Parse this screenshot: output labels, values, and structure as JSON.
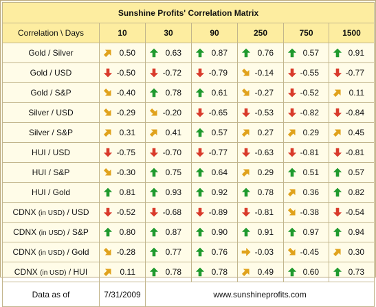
{
  "title": "Sunshine Profits' Correlation Matrix",
  "header": {
    "label": "Correlation \\ Days",
    "periods": [
      "10",
      "30",
      "90",
      "250",
      "750",
      "1500"
    ]
  },
  "rows": [
    {
      "pair": "Gold / Silver",
      "cells": [
        {
          "v": "0.50",
          "d": "up-right"
        },
        {
          "v": "0.63",
          "d": "up"
        },
        {
          "v": "0.87",
          "d": "up"
        },
        {
          "v": "0.76",
          "d": "up"
        },
        {
          "v": "0.57",
          "d": "up"
        },
        {
          "v": "0.91",
          "d": "up"
        }
      ]
    },
    {
      "pair": "Gold / USD",
      "cells": [
        {
          "v": "-0.50",
          "d": "down"
        },
        {
          "v": "-0.72",
          "d": "down"
        },
        {
          "v": "-0.79",
          "d": "down"
        },
        {
          "v": "-0.14",
          "d": "down-right"
        },
        {
          "v": "-0.55",
          "d": "down"
        },
        {
          "v": "-0.77",
          "d": "down"
        }
      ]
    },
    {
      "pair": "Gold / S&P",
      "cells": [
        {
          "v": "-0.40",
          "d": "down-right"
        },
        {
          "v": "0.78",
          "d": "up"
        },
        {
          "v": "0.61",
          "d": "up"
        },
        {
          "v": "-0.27",
          "d": "down-right"
        },
        {
          "v": "-0.52",
          "d": "down"
        },
        {
          "v": "0.11",
          "d": "up-right"
        }
      ]
    },
    {
      "pair": "Silver / USD",
      "cells": [
        {
          "v": "-0.29",
          "d": "down-right"
        },
        {
          "v": "-0.20",
          "d": "down-right"
        },
        {
          "v": "-0.65",
          "d": "down"
        },
        {
          "v": "-0.53",
          "d": "down"
        },
        {
          "v": "-0.82",
          "d": "down"
        },
        {
          "v": "-0.84",
          "d": "down"
        }
      ]
    },
    {
      "pair": "Silver / S&P",
      "cells": [
        {
          "v": "0.31",
          "d": "up-right"
        },
        {
          "v": "0.41",
          "d": "up-right"
        },
        {
          "v": "0.57",
          "d": "up"
        },
        {
          "v": "0.27",
          "d": "up-right"
        },
        {
          "v": "0.29",
          "d": "up-right"
        },
        {
          "v": "0.45",
          "d": "up-right"
        }
      ]
    },
    {
      "pair": "HUI / USD",
      "cells": [
        {
          "v": "-0.75",
          "d": "down"
        },
        {
          "v": "-0.70",
          "d": "down"
        },
        {
          "v": "-0.77",
          "d": "down"
        },
        {
          "v": "-0.63",
          "d": "down"
        },
        {
          "v": "-0.81",
          "d": "down"
        },
        {
          "v": "-0.81",
          "d": "down"
        }
      ]
    },
    {
      "pair": "HUI / S&P",
      "cells": [
        {
          "v": "-0.30",
          "d": "down-right"
        },
        {
          "v": "0.75",
          "d": "up"
        },
        {
          "v": "0.64",
          "d": "up"
        },
        {
          "v": "0.29",
          "d": "up-right"
        },
        {
          "v": "0.51",
          "d": "up"
        },
        {
          "v": "0.57",
          "d": "up"
        }
      ]
    },
    {
      "pair": "HUI / Gold",
      "cells": [
        {
          "v": "0.81",
          "d": "up"
        },
        {
          "v": "0.93",
          "d": "up"
        },
        {
          "v": "0.92",
          "d": "up"
        },
        {
          "v": "0.78",
          "d": "up"
        },
        {
          "v": "0.36",
          "d": "up-right"
        },
        {
          "v": "0.82",
          "d": "up"
        }
      ]
    },
    {
      "pair": "CDNX",
      "note": "(in USD)",
      "tail": "/ USD",
      "cells": [
        {
          "v": "-0.52",
          "d": "down"
        },
        {
          "v": "-0.68",
          "d": "down"
        },
        {
          "v": "-0.89",
          "d": "down"
        },
        {
          "v": "-0.81",
          "d": "down"
        },
        {
          "v": "-0.38",
          "d": "down-right"
        },
        {
          "v": "-0.54",
          "d": "down"
        }
      ]
    },
    {
      "pair": "CDNX",
      "note": "(in USD)",
      "tail": "/ S&P",
      "cells": [
        {
          "v": "0.80",
          "d": "up"
        },
        {
          "v": "0.87",
          "d": "up"
        },
        {
          "v": "0.90",
          "d": "up"
        },
        {
          "v": "0.91",
          "d": "up"
        },
        {
          "v": "0.97",
          "d": "up"
        },
        {
          "v": "0.94",
          "d": "up"
        }
      ]
    },
    {
      "pair": "CDNX",
      "note": "(in USD)",
      "tail": "/ Gold",
      "cells": [
        {
          "v": "-0.28",
          "d": "down-right"
        },
        {
          "v": "0.77",
          "d": "up"
        },
        {
          "v": "0.76",
          "d": "up"
        },
        {
          "v": "-0.03",
          "d": "right"
        },
        {
          "v": "-0.45",
          "d": "down-right"
        },
        {
          "v": "0.30",
          "d": "up-right"
        }
      ]
    },
    {
      "pair": "CDNX",
      "note": "(in USD)",
      "tail": "/ HUI",
      "cells": [
        {
          "v": "0.11",
          "d": "up-right"
        },
        {
          "v": "0.78",
          "d": "up"
        },
        {
          "v": "0.78",
          "d": "up"
        },
        {
          "v": "0.49",
          "d": "up-right"
        },
        {
          "v": "0.60",
          "d": "up"
        },
        {
          "v": "0.73",
          "d": "up"
        }
      ]
    }
  ],
  "footer": {
    "label": "Data as of",
    "date": "7/31/2009",
    "url": "www.sunshineprofits.com"
  },
  "colors": {
    "up": "#1f9a2e",
    "down": "#d93a2b",
    "diagonal": "#e0a21c",
    "background": "#fffce8",
    "header": "#fdeda0",
    "border": "#c2b58c"
  }
}
